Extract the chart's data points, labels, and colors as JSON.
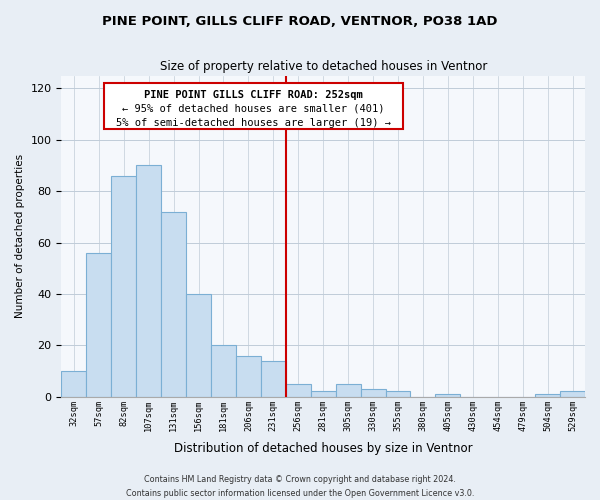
{
  "title": "PINE POINT, GILLS CLIFF ROAD, VENTNOR, PO38 1AD",
  "subtitle": "Size of property relative to detached houses in Ventnor",
  "xlabel": "Distribution of detached houses by size in Ventnor",
  "ylabel": "Number of detached properties",
  "bar_labels": [
    "32sqm",
    "57sqm",
    "82sqm",
    "107sqm",
    "131sqm",
    "156sqm",
    "181sqm",
    "206sqm",
    "231sqm",
    "256sqm",
    "281sqm",
    "305sqm",
    "330sqm",
    "355sqm",
    "380sqm",
    "405sqm",
    "430sqm",
    "454sqm",
    "479sqm",
    "504sqm",
    "529sqm"
  ],
  "bar_values": [
    10,
    56,
    86,
    90,
    72,
    40,
    20,
    16,
    14,
    5,
    2,
    5,
    3,
    2,
    0,
    1,
    0,
    0,
    0,
    1,
    2
  ],
  "bar_color": "#c8ddf0",
  "bar_edge_color": "#7bafd4",
  "marker_line_color": "#cc0000",
  "annotation_line1": "PINE POINT GILLS CLIFF ROAD: 252sqm",
  "annotation_line2": "← 95% of detached houses are smaller (401)",
  "annotation_line3": "5% of semi-detached houses are larger (19) →",
  "ylim": [
    0,
    125
  ],
  "yticks": [
    0,
    20,
    40,
    60,
    80,
    100,
    120
  ],
  "footer1": "Contains HM Land Registry data © Crown copyright and database right 2024.",
  "footer2": "Contains public sector information licensed under the Open Government Licence v3.0.",
  "bg_color": "#e8eef5",
  "plot_bg_color": "#f5f8fc",
  "grid_color": "#c0ccd8"
}
